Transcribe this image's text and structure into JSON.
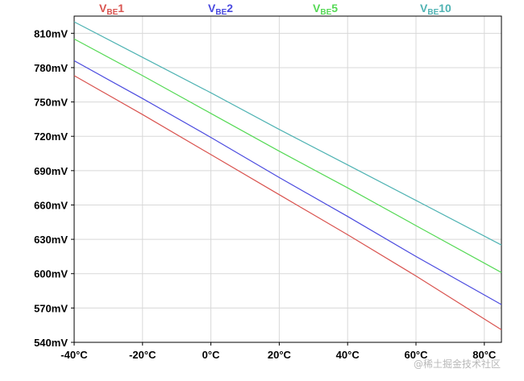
{
  "chart_data": {
    "type": "line",
    "title": "",
    "xlabel": "",
    "ylabel": "",
    "xlim": [
      -40,
      85
    ],
    "ylim": [
      540,
      825
    ],
    "x_ticks": [
      {
        "value": -40,
        "label": "-40°C"
      },
      {
        "value": -20,
        "label": "-20°C"
      },
      {
        "value": 0,
        "label": "0°C"
      },
      {
        "value": 20,
        "label": "20°C"
      },
      {
        "value": 40,
        "label": "40°C"
      },
      {
        "value": 60,
        "label": "60°C"
      },
      {
        "value": 80,
        "label": "80°C"
      }
    ],
    "y_ticks": [
      {
        "value": 540,
        "label": "540mV"
      },
      {
        "value": 570,
        "label": "570mV"
      },
      {
        "value": 600,
        "label": "600mV"
      },
      {
        "value": 630,
        "label": "630mV"
      },
      {
        "value": 660,
        "label": "660mV"
      },
      {
        "value": 690,
        "label": "690mV"
      },
      {
        "value": 720,
        "label": "720mV"
      },
      {
        "value": 750,
        "label": "750mV"
      },
      {
        "value": 780,
        "label": "780mV"
      },
      {
        "value": 810,
        "label": "810mV"
      }
    ],
    "grid": true,
    "legend_position": "top",
    "series": [
      {
        "name": "VBE1",
        "name_main": "V",
        "name_sub": "BE",
        "name_suffix": "1",
        "color": "#d9534f",
        "x": [
          -40,
          -20,
          0,
          20,
          40,
          60,
          85
        ],
        "values": [
          773,
          739,
          704,
          669,
          634,
          598,
          551
        ]
      },
      {
        "name": "VBE2",
        "name_main": "V",
        "name_sub": "BE",
        "name_suffix": "2",
        "color": "#4a4adf",
        "x": [
          -40,
          -20,
          0,
          20,
          40,
          60,
          85
        ],
        "values": [
          786,
          753,
          719,
          684,
          650,
          615,
          573
        ]
      },
      {
        "name": "VBE5",
        "name_main": "V",
        "name_sub": "BE",
        "name_suffix": "5",
        "color": "#55d955",
        "x": [
          -40,
          -20,
          0,
          20,
          40,
          60,
          85
        ],
        "values": [
          805,
          773,
          740,
          707,
          675,
          642,
          601
        ]
      },
      {
        "name": "VBE10",
        "name_main": "V",
        "name_sub": "BE",
        "name_suffix": "10",
        "color": "#4fb3b3",
        "x": [
          -40,
          -20,
          0,
          20,
          40,
          60,
          85
        ],
        "values": [
          820,
          789,
          758,
          726,
          695,
          664,
          625
        ]
      }
    ]
  },
  "watermark": "@稀土掘金技术社区"
}
